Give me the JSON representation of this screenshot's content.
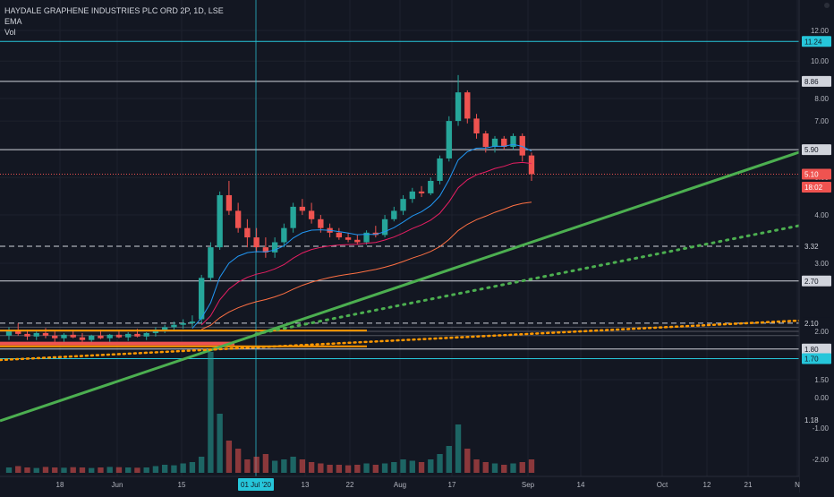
{
  "header": {
    "symbol_line": "HAYDALE GRAPHENE INDUSTRIES PLC ORD 2P, 1D, LSE",
    "indicator_1": "EMA",
    "indicator_2": "Vol"
  },
  "chart_data": {
    "type": "candlestick",
    "title": "HAYDALE GRAPHENE INDUSTRIES PLC ORD 2P, 1D, LSE",
    "y_scale": "log",
    "y_ticks": [
      "12.00",
      "10.00",
      "8.00",
      "7.00",
      "5.00",
      "4.00",
      "3.00",
      "2.00",
      "1.50"
    ],
    "y_ticks_lower": [
      "0.00",
      "-1.00",
      "-2.00"
    ],
    "price_labels": [
      {
        "text": "11.24",
        "value": 11.24,
        "kind": "teal-line"
      },
      {
        "text": "8.86",
        "value": 8.86,
        "kind": "white-line"
      },
      {
        "text": "5.90",
        "value": 5.9,
        "kind": "white-line"
      },
      {
        "text": "5.10",
        "value": 5.1,
        "kind": "current-price"
      },
      {
        "text": "18:02",
        "value": 4.72,
        "kind": "countdown"
      },
      {
        "text": "3.32",
        "value": 3.32,
        "kind": "dashed-line"
      },
      {
        "text": "2.70",
        "value": 2.7,
        "kind": "white-line"
      },
      {
        "text": "2.10",
        "value": 2.1,
        "kind": "dashed-line"
      },
      {
        "text": "1.80",
        "value": 1.8,
        "kind": "white-line"
      },
      {
        "text": "1.70",
        "value": 1.7,
        "kind": "teal-line"
      },
      {
        "text": "1.18",
        "value": 1.18,
        "kind": "plain"
      }
    ],
    "x_ticks": [
      "18",
      "Jun",
      "15",
      "01 Jul '20",
      "13",
      "22",
      "Aug",
      "17",
      "Sep",
      "14",
      "Oct",
      "12",
      "21",
      "N"
    ],
    "crosshair_x_label": "01 Jul '20",
    "ohlc": [
      [
        1.95,
        2.05,
        1.9,
        2.0
      ],
      [
        2.0,
        2.1,
        1.95,
        1.97
      ],
      [
        1.97,
        2.02,
        1.9,
        1.94
      ],
      [
        1.94,
        2.0,
        1.9,
        1.98
      ],
      [
        1.98,
        2.04,
        1.92,
        1.95
      ],
      [
        1.95,
        2.0,
        1.88,
        1.92
      ],
      [
        1.92,
        1.98,
        1.88,
        1.96
      ],
      [
        1.96,
        2.02,
        1.92,
        1.93
      ],
      [
        1.93,
        1.98,
        1.88,
        1.9
      ],
      [
        1.9,
        1.96,
        1.86,
        1.95
      ],
      [
        1.95,
        2.02,
        1.91,
        1.92
      ],
      [
        1.92,
        1.97,
        1.88,
        1.96
      ],
      [
        1.96,
        2.01,
        1.92,
        1.93
      ],
      [
        1.93,
        1.99,
        1.89,
        1.97
      ],
      [
        1.97,
        2.03,
        1.93,
        1.94
      ],
      [
        1.94,
        1.99,
        1.9,
        1.98
      ],
      [
        1.98,
        2.05,
        1.94,
        2.02
      ],
      [
        2.02,
        2.08,
        1.98,
        2.05
      ],
      [
        2.05,
        2.12,
        2.0,
        2.08
      ],
      [
        2.08,
        2.15,
        2.03,
        2.1
      ],
      [
        2.1,
        2.2,
        2.05,
        2.12
      ],
      [
        2.15,
        2.8,
        2.1,
        2.75
      ],
      [
        2.75,
        3.4,
        2.7,
        3.3
      ],
      [
        3.3,
        4.6,
        3.25,
        4.5
      ],
      [
        4.5,
        4.9,
        4.0,
        4.1
      ],
      [
        4.1,
        4.3,
        3.6,
        3.7
      ],
      [
        3.7,
        3.9,
        3.3,
        3.5
      ],
      [
        3.5,
        3.7,
        3.2,
        3.3
      ],
      [
        3.3,
        3.5,
        3.1,
        3.2
      ],
      [
        3.2,
        3.5,
        3.1,
        3.4
      ],
      [
        3.4,
        3.8,
        3.3,
        3.7
      ],
      [
        3.7,
        4.3,
        3.6,
        4.2
      ],
      [
        4.2,
        4.4,
        4.0,
        4.1
      ],
      [
        4.1,
        4.3,
        3.8,
        3.9
      ],
      [
        3.9,
        4.0,
        3.6,
        3.7
      ],
      [
        3.7,
        3.8,
        3.5,
        3.6
      ],
      [
        3.6,
        3.7,
        3.45,
        3.5
      ],
      [
        3.5,
        3.6,
        3.4,
        3.45
      ],
      [
        3.45,
        3.55,
        3.35,
        3.4
      ],
      [
        3.4,
        3.65,
        3.35,
        3.6
      ],
      [
        3.6,
        3.75,
        3.5,
        3.55
      ],
      [
        3.55,
        4.0,
        3.5,
        3.9
      ],
      [
        3.9,
        4.2,
        3.85,
        4.1
      ],
      [
        4.1,
        4.5,
        4.0,
        4.4
      ],
      [
        4.4,
        4.7,
        4.3,
        4.6
      ],
      [
        4.6,
        4.75,
        4.45,
        4.55
      ],
      [
        4.55,
        5.0,
        4.5,
        4.9
      ],
      [
        4.9,
        5.7,
        4.8,
        5.6
      ],
      [
        5.6,
        7.2,
        5.5,
        7.0
      ],
      [
        7.0,
        9.2,
        6.8,
        8.3
      ],
      [
        8.3,
        8.4,
        6.9,
        7.1
      ],
      [
        7.1,
        7.3,
        6.3,
        6.5
      ],
      [
        6.5,
        6.6,
        5.8,
        6.0
      ],
      [
        6.0,
        6.4,
        5.8,
        6.3
      ],
      [
        6.3,
        6.4,
        5.9,
        6.0
      ],
      [
        6.0,
        6.5,
        5.9,
        6.4
      ],
      [
        6.4,
        6.5,
        5.5,
        5.7
      ],
      [
        5.7,
        5.8,
        4.9,
        5.1
      ]
    ],
    "volume": [
      0.2,
      0.25,
      0.2,
      0.18,
      0.22,
      0.2,
      0.19,
      0.21,
      0.2,
      0.18,
      0.2,
      0.22,
      0.21,
      0.2,
      0.19,
      0.2,
      0.25,
      0.3,
      0.28,
      0.35,
      0.4,
      0.6,
      5.0,
      2.2,
      1.2,
      0.9,
      0.5,
      0.6,
      0.7,
      0.45,
      0.5,
      0.6,
      0.5,
      0.4,
      0.35,
      0.3,
      0.3,
      0.28,
      0.3,
      0.35,
      0.3,
      0.35,
      0.4,
      0.5,
      0.45,
      0.4,
      0.5,
      0.7,
      1.0,
      1.8,
      0.9,
      0.5,
      0.4,
      0.35,
      0.3,
      0.35,
      0.4,
      0.5
    ]
  },
  "colors": {
    "background": "#131722",
    "up": "#26a69a",
    "down": "#ef5350",
    "trendline": "#4caf50",
    "ema": "#2196f3",
    "accent_orange": "#ff9800",
    "teal_line": "#26c6da"
  }
}
